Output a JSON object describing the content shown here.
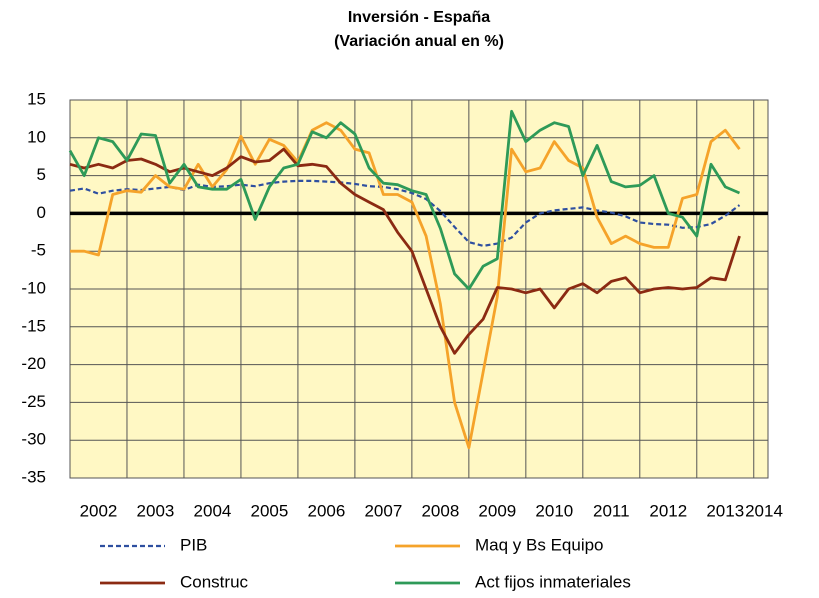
{
  "chart_data": {
    "type": "line",
    "title": "Inversión - España",
    "subtitle": "(Variación anual en %)",
    "x": [
      2002,
      2002.25,
      2002.5,
      2002.75,
      2003,
      2003.25,
      2003.5,
      2003.75,
      2004,
      2004.25,
      2004.5,
      2004.75,
      2005,
      2005.25,
      2005.5,
      2005.75,
      2006,
      2006.25,
      2006.5,
      2006.75,
      2007,
      2007.25,
      2007.5,
      2007.75,
      2008,
      2008.25,
      2008.5,
      2008.75,
      2009,
      2009.25,
      2009.5,
      2009.75,
      2010,
      2010.25,
      2010.5,
      2010.75,
      2011,
      2011.25,
      2011.5,
      2011.75,
      2012,
      2012.25,
      2012.5,
      2012.75,
      2013,
      2013.25,
      2013.5,
      2013.75
    ],
    "xlim": [
      2002,
      2014.25
    ],
    "xticks": [
      2002,
      2003,
      2004,
      2005,
      2006,
      2007,
      2008,
      2009,
      2010,
      2011,
      2012,
      2013,
      2014
    ],
    "ylim": [
      -35,
      15
    ],
    "yticks": [
      -35,
      -30,
      -25,
      -20,
      -15,
      -10,
      -5,
      0,
      5,
      10,
      15
    ],
    "grid": true,
    "series": [
      {
        "name": "PIB",
        "color": "#2e4fa0",
        "dashed": true,
        "values": [
          3,
          3.3,
          2.6,
          3,
          3.2,
          3.1,
          3.3,
          3.5,
          3.1,
          3.8,
          3.5,
          3.6,
          3.8,
          3.6,
          4,
          4.2,
          4.3,
          4.3,
          4.2,
          4.1,
          3.9,
          3.6,
          3.5,
          3.2,
          2.7,
          1.9,
          0.3,
          -1.8,
          -3.8,
          -4.3,
          -4,
          -3.2,
          -1.2,
          0,
          0.4,
          0.6,
          0.8,
          0.4,
          0.1,
          -0.4,
          -1.2,
          -1.4,
          -1.5,
          -1.9,
          -1.8,
          -1.4,
          -0.3,
          1.1
        ]
      },
      {
        "name": "Maq y Bs Equipo",
        "color": "#f5a32a",
        "values": [
          -5,
          -5,
          -5.5,
          2.5,
          3,
          2.8,
          5,
          3.5,
          3.2,
          6.5,
          3.5,
          5.8,
          10.2,
          6.5,
          9.8,
          9,
          6.8,
          11,
          12,
          11,
          8.5,
          8,
          2.5,
          2.5,
          1.5,
          -3,
          -12,
          -25,
          -31,
          -21,
          -11,
          8.5,
          5.5,
          6,
          9.5,
          7,
          6,
          -0.5,
          -4,
          -3,
          -4,
          -4.5,
          -4.5,
          2,
          2.5,
          9.5,
          11,
          8.5
        ]
      },
      {
        "name": "Construc",
        "color": "#8b2a12",
        "values": [
          6.5,
          6,
          6.5,
          6,
          7,
          7.2,
          6.5,
          5.5,
          6,
          5.5,
          5,
          6,
          7.5,
          6.8,
          7,
          8.5,
          6.3,
          6.5,
          6.2,
          4,
          2.5,
          1.5,
          0.5,
          -2.5,
          -5,
          -10,
          -15,
          -18.5,
          -16,
          -14,
          -9.8,
          -10,
          -10.5,
          -10,
          -12.5,
          -10,
          -9.3,
          -10.5,
          -9,
          -8.5,
          -10.5,
          -10,
          -9.8,
          -10,
          -9.8,
          -8.5,
          -8.8,
          -3
        ]
      },
      {
        "name": "Act fijos  inmateriales",
        "color": "#2e9a58",
        "values": [
          8.3,
          5,
          10,
          9.5,
          7,
          10.5,
          10.3,
          4,
          6.5,
          3.5,
          3.2,
          3.2,
          4.5,
          -0.8,
          3.5,
          6,
          6.5,
          10.8,
          10,
          12,
          10.5,
          6,
          4,
          3.8,
          3,
          2.5,
          -2,
          -8,
          -10,
          -7,
          -6,
          13.5,
          9.5,
          11,
          12,
          11.5,
          5,
          9,
          4.2,
          3.5,
          3.7,
          5,
          0,
          -0.5,
          -3,
          6.5,
          3.5,
          2.7
        ]
      }
    ]
  }
}
